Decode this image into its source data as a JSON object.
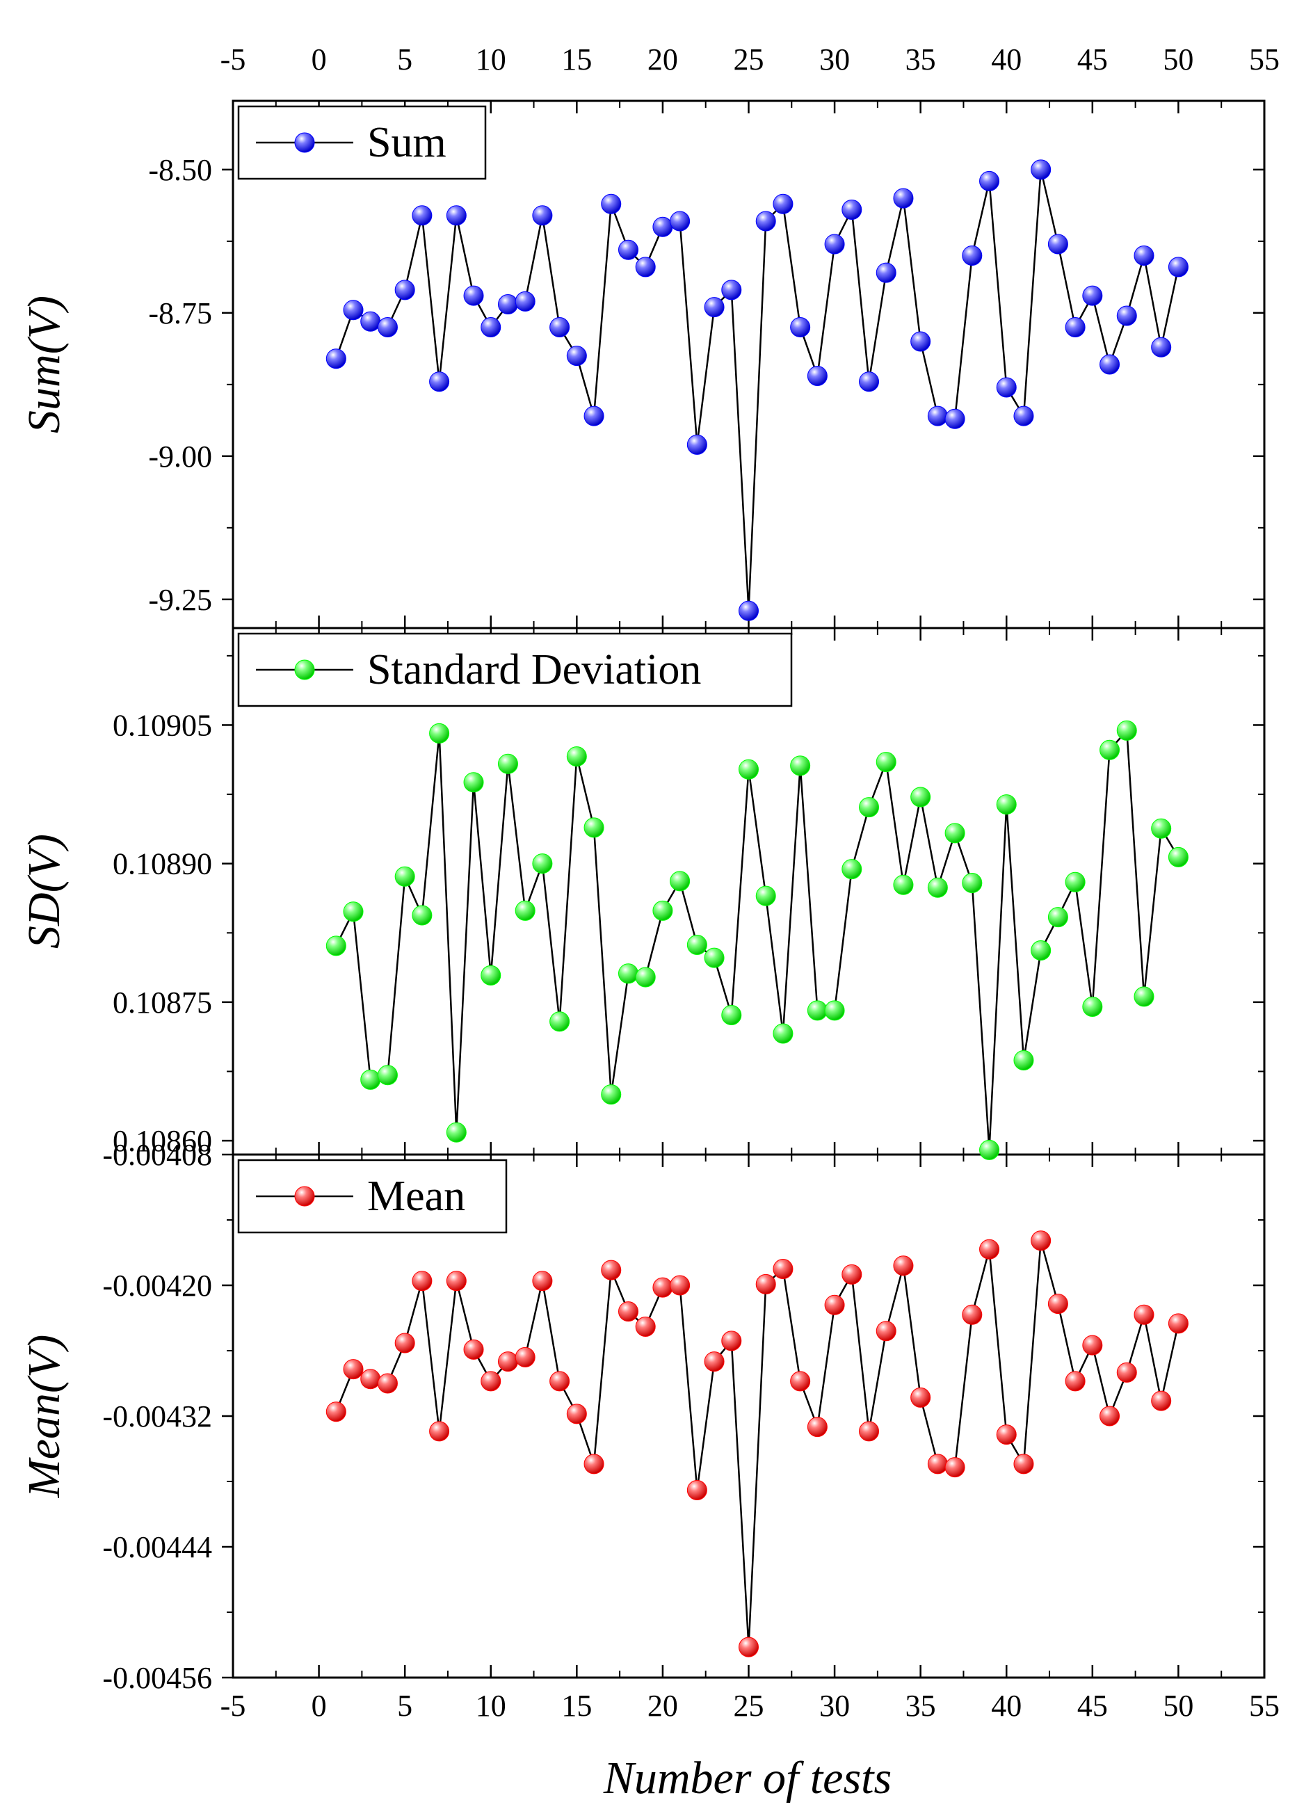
{
  "figure": {
    "xlabel": "Number of tests",
    "x_ticks": [
      "-5",
      "0",
      "5",
      "10",
      "15",
      "20",
      "25",
      "30",
      "35",
      "40",
      "45",
      "50",
      "55"
    ]
  },
  "chart_data": [
    {
      "type": "line",
      "title": "",
      "xlabel": "Number of tests",
      "ylabel": "Sum(V)",
      "xlim": [
        -5,
        55
      ],
      "ylim": [
        -9.3,
        -8.38
      ],
      "y_ticks": [
        "-8.50",
        "-8.75",
        "-9.00",
        "-9.25"
      ],
      "legend": "top-left",
      "color": "#0000ff",
      "series": [
        {
          "name": "Sum",
          "x": [
            1,
            2,
            3,
            4,
            5,
            6,
            7,
            8,
            9,
            10,
            11,
            12,
            13,
            14,
            15,
            16,
            17,
            18,
            19,
            20,
            21,
            22,
            23,
            24,
            25,
            26,
            27,
            28,
            29,
            30,
            31,
            32,
            33,
            34,
            35,
            36,
            37,
            38,
            39,
            40,
            41,
            42,
            43,
            44,
            45,
            46,
            47,
            48,
            49,
            50
          ],
          "values": [
            -8.83,
            -8.745,
            -8.765,
            -8.775,
            -8.71,
            -8.58,
            -8.87,
            -8.58,
            -8.72,
            -8.775,
            -8.735,
            -8.73,
            -8.58,
            -8.775,
            -8.825,
            -8.93,
            -8.56,
            -8.64,
            -8.67,
            -8.6,
            -8.59,
            -8.98,
            -8.74,
            -8.71,
            -9.27,
            -8.59,
            -8.56,
            -8.775,
            -8.86,
            -8.63,
            -8.57,
            -8.87,
            -8.68,
            -8.55,
            -8.8,
            -8.93,
            -8.935,
            -8.65,
            -8.52,
            -8.88,
            -8.93,
            -8.5,
            -8.63,
            -8.775,
            -8.72,
            -8.84,
            -8.755,
            -8.65,
            -8.81,
            -8.67
          ]
        }
      ]
    },
    {
      "type": "line",
      "title": "",
      "xlabel": "Number of tests",
      "ylabel": "SD(V)",
      "xlim": [
        -5,
        55
      ],
      "ylim": [
        0.108585,
        0.109155
      ],
      "y_ticks": [
        "0.10905",
        "0.10890",
        "0.10875",
        "0.10860"
      ],
      "legend": "top-left",
      "color": "#00ff00",
      "series": [
        {
          "name": "Standard Deviation",
          "x": [
            1,
            2,
            3,
            4,
            5,
            6,
            7,
            8,
            9,
            10,
            11,
            12,
            13,
            14,
            15,
            16,
            17,
            18,
            19,
            20,
            21,
            22,
            23,
            24,
            25,
            26,
            27,
            28,
            29,
            30,
            31,
            32,
            33,
            34,
            35,
            36,
            37,
            38,
            39,
            40,
            41,
            42,
            43,
            44,
            45,
            46,
            47,
            48,
            49,
            50
          ],
          "values": [
            0.108811,
            0.108848,
            0.108666,
            0.108671,
            0.108886,
            0.108844,
            0.109041,
            0.108609,
            0.108988,
            0.108779,
            0.109008,
            0.108849,
            0.1089,
            0.108729,
            0.109016,
            0.108939,
            0.10865,
            0.108781,
            0.108777,
            0.108849,
            0.108881,
            0.108812,
            0.108798,
            0.108736,
            0.109002,
            0.108865,
            0.108716,
            0.109006,
            0.108741,
            0.108741,
            0.108894,
            0.108961,
            0.10901,
            0.108877,
            0.108972,
            0.108874,
            0.108933,
            0.108879,
            0.10859,
            0.108964,
            0.108687,
            0.108806,
            0.108842,
            0.10888,
            0.108745,
            0.109023,
            0.109044,
            0.108756,
            0.108938,
            0.108907
          ]
        }
      ]
    },
    {
      "type": "line",
      "title": "",
      "xlabel": "Number of tests",
      "ylabel": "Mean(V)",
      "xlim": [
        -5,
        55
      ],
      "ylim": [
        -0.00456,
        -0.00408
      ],
      "y_ticks": [
        "-0.00408",
        "-0.00420",
        "-0.00432",
        "-0.00444",
        "-0.00456"
      ],
      "legend": "top-left",
      "color": "#ff0000",
      "series": [
        {
          "name": "Mean",
          "x": [
            1,
            2,
            3,
            4,
            5,
            6,
            7,
            8,
            9,
            10,
            11,
            12,
            13,
            14,
            15,
            16,
            17,
            18,
            19,
            20,
            21,
            22,
            23,
            24,
            25,
            26,
            27,
            28,
            29,
            30,
            31,
            32,
            33,
            34,
            35,
            36,
            37,
            38,
            39,
            40,
            41,
            42,
            43,
            44,
            45,
            46,
            47,
            48,
            49,
            50
          ],
          "values": [
            -0.004316,
            -0.004277,
            -0.004286,
            -0.00429,
            -0.004253,
            -0.004196,
            -0.004334,
            -0.004196,
            -0.004259,
            -0.004288,
            -0.00427,
            -0.004266,
            -0.004196,
            -0.004288,
            -0.004318,
            -0.004364,
            -0.004186,
            -0.004224,
            -0.004238,
            -0.004202,
            -0.0042,
            -0.004388,
            -0.00427,
            -0.004251,
            -0.004532,
            -0.004199,
            -0.004185,
            -0.004288,
            -0.00433,
            -0.004218,
            -0.00419,
            -0.004334,
            -0.004242,
            -0.004182,
            -0.004303,
            -0.004364,
            -0.004367,
            -0.004227,
            -0.004167,
            -0.004337,
            -0.004364,
            -0.004159,
            -0.004217,
            -0.004288,
            -0.004255,
            -0.00432,
            -0.00428,
            -0.004227,
            -0.004306,
            -0.004235
          ]
        }
      ]
    }
  ]
}
